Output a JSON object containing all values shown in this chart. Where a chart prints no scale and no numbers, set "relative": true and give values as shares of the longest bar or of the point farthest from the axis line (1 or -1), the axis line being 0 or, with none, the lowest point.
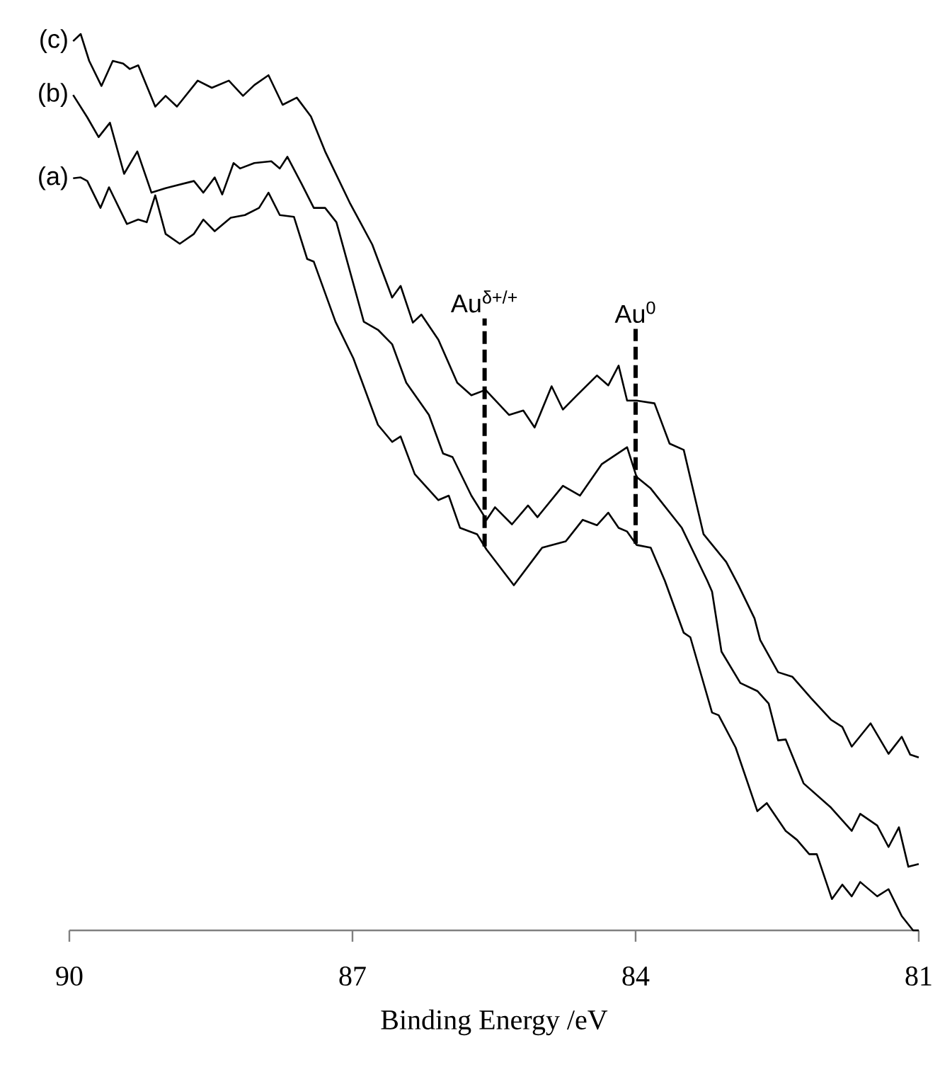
{
  "chart_data": {
    "type": "line",
    "relative": true,
    "xlabel": "Binding Energy /eV",
    "xlim": [
      90,
      81
    ],
    "xticks": [
      90,
      87,
      84,
      81
    ],
    "tick_labels": "x",
    "marker": "none",
    "line_style": "solid",
    "series": [
      {
        "name": "(a)",
        "color": "#000000",
        "x": [
          89.96,
          89.88,
          89.81,
          89.67,
          89.58,
          89.39,
          89.27,
          89.18,
          89.09,
          88.98,
          88.83,
          88.68,
          88.58,
          88.46,
          88.29,
          88.14,
          87.99,
          87.89,
          87.77,
          87.62,
          87.48,
          87.41,
          87.18,
          86.99,
          86.73,
          86.58,
          86.49,
          86.34,
          86.09,
          85.98,
          85.86,
          85.68,
          85.58,
          85.29,
          84.99,
          84.74,
          84.56,
          84.41,
          84.29,
          84.18,
          84.09,
          83.99,
          83.84,
          83.69,
          83.49,
          83.42,
          83.19,
          83.12,
          82.94,
          82.71,
          82.61,
          82.41,
          82.29,
          82.16,
          82.08,
          81.92,
          81.81,
          81.71,
          81.62,
          81.44,
          81.32,
          81.18,
          81.06,
          81.0
        ],
        "values": [
          0.839,
          0.84,
          0.836,
          0.806,
          0.829,
          0.788,
          0.793,
          0.79,
          0.82,
          0.777,
          0.766,
          0.777,
          0.793,
          0.78,
          0.795,
          0.798,
          0.806,
          0.823,
          0.798,
          0.796,
          0.749,
          0.746,
          0.679,
          0.638,
          0.564,
          0.545,
          0.551,
          0.509,
          0.48,
          0.485,
          0.449,
          0.442,
          0.425,
          0.385,
          0.427,
          0.434,
          0.458,
          0.452,
          0.466,
          0.449,
          0.445,
          0.43,
          0.427,
          0.39,
          0.332,
          0.327,
          0.243,
          0.24,
          0.204,
          0.133,
          0.142,
          0.111,
          0.101,
          0.085,
          0.085,
          0.035,
          0.051,
          0.038,
          0.054,
          0.038,
          0.046,
          0.016,
          0.0,
          0.0
        ]
      },
      {
        "name": "(b)",
        "color": "#000000",
        "x": [
          89.96,
          89.81,
          89.69,
          89.57,
          89.42,
          89.28,
          89.13,
          88.98,
          88.68,
          88.58,
          88.46,
          88.38,
          88.26,
          88.19,
          88.04,
          87.86,
          87.77,
          87.69,
          87.54,
          87.41,
          87.29,
          87.17,
          86.88,
          86.73,
          86.58,
          86.43,
          86.19,
          86.04,
          85.94,
          85.74,
          85.58,
          85.49,
          85.31,
          85.14,
          85.04,
          84.77,
          84.59,
          84.36,
          84.09,
          83.99,
          83.84,
          83.51,
          83.24,
          83.19,
          83.09,
          82.89,
          82.71,
          82.59,
          82.49,
          82.41,
          82.22,
          81.93,
          81.71,
          81.62,
          81.44,
          81.32,
          81.21,
          81.11,
          81.0
        ],
        "values": [
          0.932,
          0.907,
          0.885,
          0.901,
          0.844,
          0.869,
          0.823,
          0.828,
          0.836,
          0.823,
          0.84,
          0.821,
          0.856,
          0.85,
          0.856,
          0.858,
          0.85,
          0.863,
          0.833,
          0.806,
          0.806,
          0.79,
          0.679,
          0.67,
          0.654,
          0.611,
          0.575,
          0.532,
          0.528,
          0.485,
          0.458,
          0.472,
          0.453,
          0.474,
          0.461,
          0.496,
          0.485,
          0.52,
          0.539,
          0.506,
          0.493,
          0.449,
          0.39,
          0.378,
          0.311,
          0.276,
          0.267,
          0.253,
          0.212,
          0.213,
          0.164,
          0.137,
          0.111,
          0.13,
          0.117,
          0.093,
          0.115,
          0.071,
          0.074
        ]
      },
      {
        "name": "(c)",
        "color": "#000000",
        "x": [
          89.96,
          89.88,
          89.79,
          89.66,
          89.54,
          89.43,
          89.36,
          89.27,
          89.09,
          88.98,
          88.86,
          88.64,
          88.49,
          88.31,
          88.16,
          88.04,
          87.89,
          87.74,
          87.59,
          87.44,
          87.29,
          87.03,
          86.79,
          86.58,
          86.49,
          86.36,
          86.27,
          86.09,
          85.89,
          85.74,
          85.59,
          85.34,
          85.19,
          85.07,
          84.89,
          84.77,
          84.63,
          84.41,
          84.29,
          84.18,
          84.09,
          83.99,
          83.8,
          83.64,
          83.49,
          83.28,
          83.04,
          82.91,
          82.74,
          82.68,
          82.49,
          82.34,
          82.14,
          81.93,
          81.81,
          81.71,
          81.51,
          81.32,
          81.18,
          81.09,
          81.0
        ],
        "values": [
          0.992,
          1.0,
          0.97,
          0.942,
          0.97,
          0.967,
          0.961,
          0.965,
          0.919,
          0.931,
          0.919,
          0.948,
          0.94,
          0.948,
          0.931,
          0.943,
          0.954,
          0.921,
          0.929,
          0.908,
          0.869,
          0.812,
          0.765,
          0.706,
          0.719,
          0.678,
          0.687,
          0.659,
          0.611,
          0.597,
          0.603,
          0.575,
          0.58,
          0.561,
          0.607,
          0.581,
          0.596,
          0.619,
          0.608,
          0.63,
          0.591,
          0.591,
          0.588,
          0.543,
          0.536,
          0.442,
          0.411,
          0.385,
          0.348,
          0.324,
          0.288,
          0.283,
          0.259,
          0.235,
          0.227,
          0.205,
          0.231,
          0.197,
          0.216,
          0.196,
          0.193
        ]
      }
    ],
    "ref_lines": [
      {
        "axis": "x",
        "value": 85.6,
        "label": "Au$^{δ+/+}$",
        "color": "#000000",
        "line_style": "dashed"
      },
      {
        "axis": "x",
        "value": 84.0,
        "label": "Au$^{0}$",
        "color": "#000000",
        "line_style": "dashed"
      }
    ]
  }
}
